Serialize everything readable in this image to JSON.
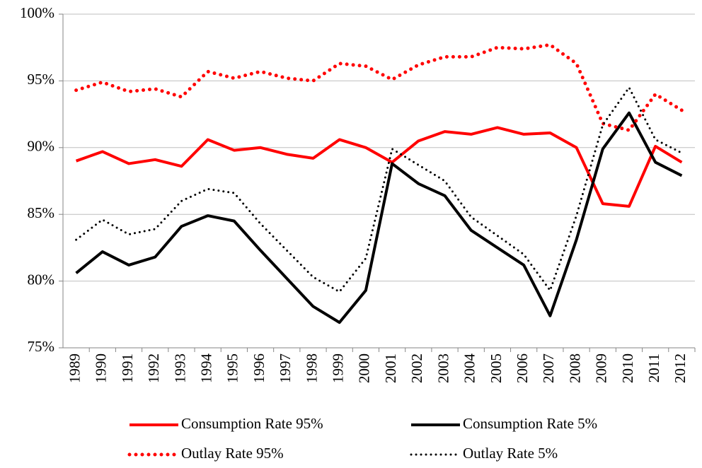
{
  "chart_data": {
    "type": "line",
    "categories": [
      "1989",
      "1990",
      "1991",
      "1992",
      "1993",
      "1994",
      "1995",
      "1996",
      "1997",
      "1998",
      "1999",
      "2000",
      "2001",
      "2002",
      "2003",
      "2004",
      "2005",
      "2006",
      "2007",
      "2008",
      "2009",
      "2010",
      "2011",
      "2012"
    ],
    "series": [
      {
        "name": "Consumption Rate 95%",
        "color": "#ff0000",
        "style": "solid",
        "values": [
          89.0,
          89.7,
          88.8,
          89.1,
          88.6,
          90.6,
          89.8,
          90.0,
          89.5,
          89.2,
          90.6,
          90.0,
          88.9,
          90.5,
          91.2,
          91.0,
          91.5,
          91.0,
          91.1,
          90.0,
          85.8,
          85.6,
          90.1,
          88.9
        ]
      },
      {
        "name": "Consumption Rate 5%",
        "color": "#000000",
        "style": "solid",
        "values": [
          80.6,
          82.2,
          81.2,
          81.8,
          84.1,
          84.9,
          84.5,
          82.3,
          80.2,
          78.1,
          76.9,
          79.3,
          88.8,
          87.3,
          86.4,
          83.8,
          82.5,
          81.2,
          77.4,
          83.1,
          89.9,
          92.6,
          88.9,
          87.9
        ]
      },
      {
        "name": "Outlay Rate 95%",
        "color": "#ff0000",
        "style": "dotted",
        "values": [
          94.3,
          94.9,
          94.2,
          94.4,
          93.8,
          95.7,
          95.2,
          95.7,
          95.2,
          95.0,
          96.3,
          96.1,
          95.1,
          96.2,
          96.8,
          96.8,
          97.5,
          97.4,
          97.7,
          96.3,
          91.8,
          91.3,
          94.0,
          92.8
        ]
      },
      {
        "name": "Outlay Rate 5%",
        "color": "#000000",
        "style": "dotted",
        "values": [
          83.1,
          84.6,
          83.5,
          83.9,
          86.0,
          86.9,
          86.6,
          84.3,
          82.3,
          80.3,
          79.2,
          81.7,
          89.9,
          88.7,
          87.5,
          84.8,
          83.4,
          82.0,
          79.3,
          84.9,
          91.7,
          94.5,
          90.6,
          89.6
        ]
      }
    ],
    "ylim": [
      75,
      100
    ],
    "yticks": [
      {
        "value": 75,
        "label": "75%"
      },
      {
        "value": 80,
        "label": "80%"
      },
      {
        "value": 85,
        "label": "85%"
      },
      {
        "value": 90,
        "label": "90%"
      },
      {
        "value": 95,
        "label": "95%"
      },
      {
        "value": 100,
        "label": "100%"
      }
    ],
    "grid": true,
    "legend": "bottom"
  }
}
